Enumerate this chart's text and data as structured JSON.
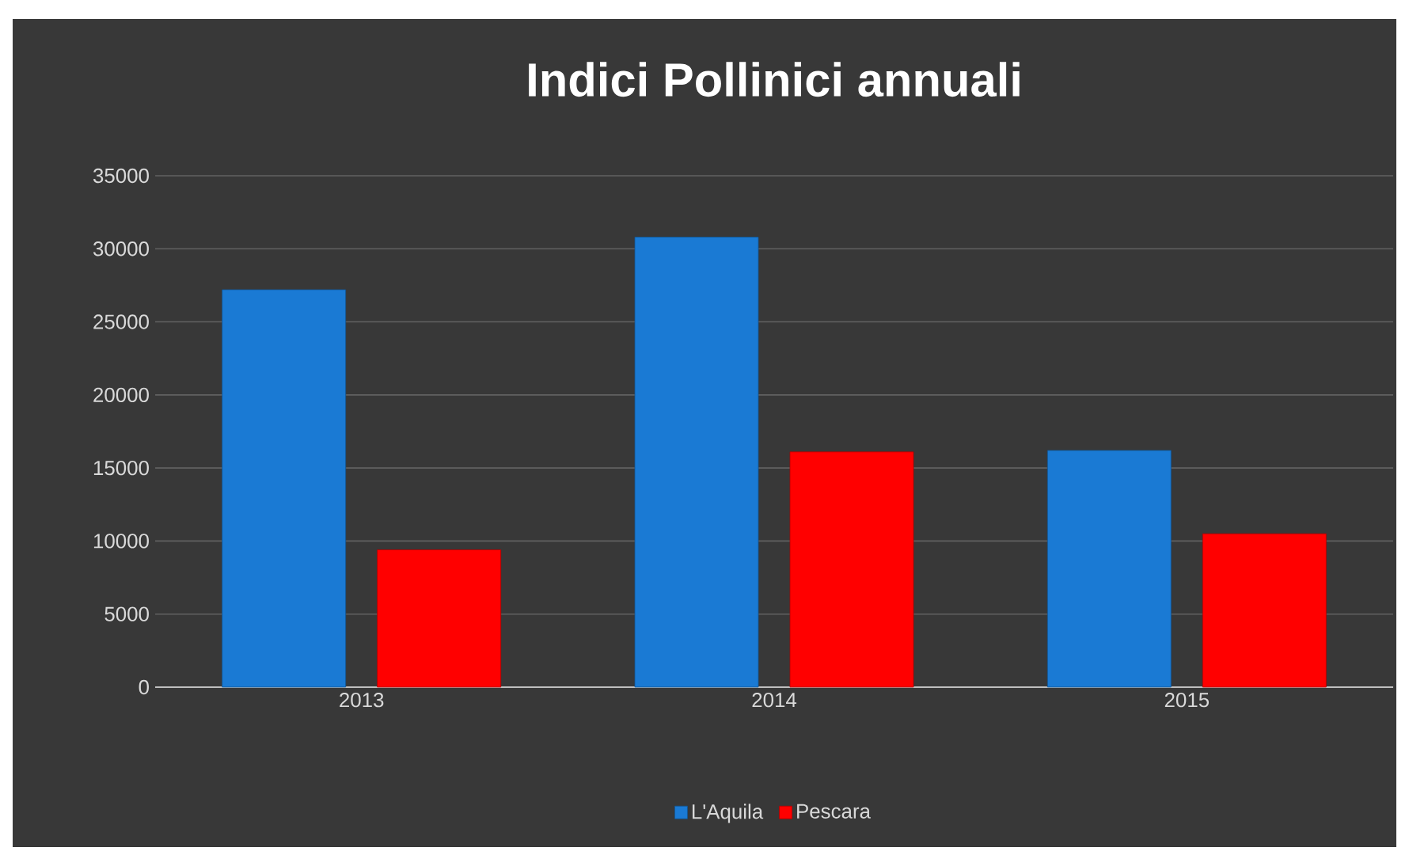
{
  "chart_data": {
    "type": "bar",
    "title": "Indici Pollinici annuali",
    "categories": [
      "2013",
      "2014",
      "2015"
    ],
    "series": [
      {
        "name": "L'Aquila",
        "color": "#1a7ad4",
        "values": [
          27200,
          30800,
          16200
        ]
      },
      {
        "name": "Pescara",
        "color": "#ff0000",
        "values": [
          9400,
          16100,
          10500
        ]
      }
    ],
    "ylim": [
      0,
      35000
    ],
    "yticks": [
      0,
      5000,
      10000,
      15000,
      20000,
      25000,
      30000,
      35000
    ],
    "grid": "y",
    "legend": "bottom"
  }
}
